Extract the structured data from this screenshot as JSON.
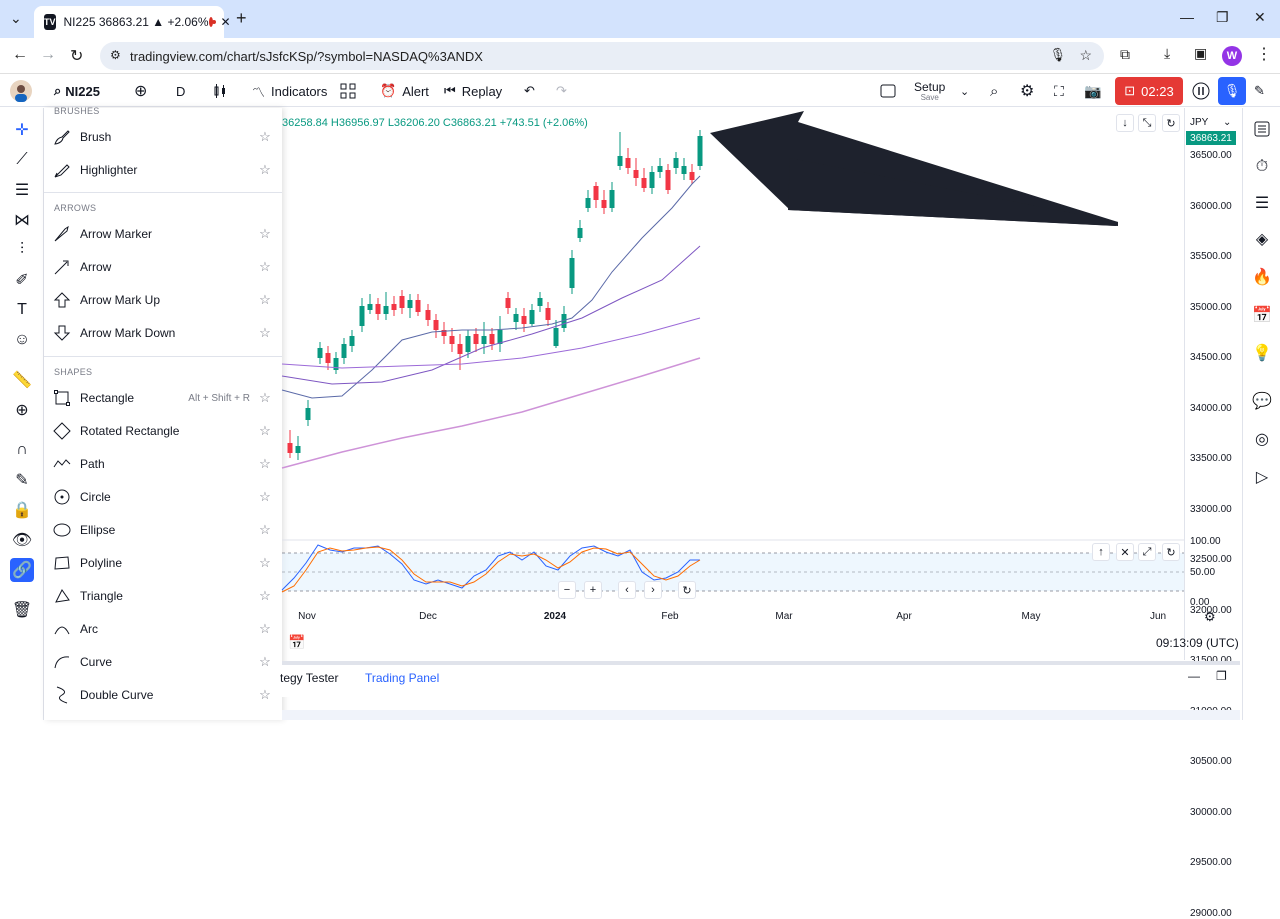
{
  "browser": {
    "tab_title": "NI225 36863.21 ▲ +2.06%",
    "tab_icon": "TV",
    "new_tab": "+",
    "url": "tradingview.com/chart/sJsfcKSp/?symbol=NASDAQ%3ANDX",
    "profile_initial": "W"
  },
  "toolbar": {
    "symbol": "NI225",
    "interval": "D",
    "indicators": "Indicators",
    "alert": "Alert",
    "replay": "Replay",
    "setup_title": "Setup",
    "setup_sub": "Save",
    "record_time": "02:23"
  },
  "drawing_menu": {
    "sections": [
      {
        "title": "BRUSHES",
        "items": [
          {
            "label": "Brush",
            "icon": "brush-icon"
          },
          {
            "label": "Highlighter",
            "icon": "highlighter-icon"
          }
        ]
      },
      {
        "title": "ARROWS",
        "items": [
          {
            "label": "Arrow Marker",
            "icon": "arrow-marker-icon"
          },
          {
            "label": "Arrow",
            "icon": "arrow-icon"
          },
          {
            "label": "Arrow Mark Up",
            "icon": "arrow-up-icon"
          },
          {
            "label": "Arrow Mark Down",
            "icon": "arrow-down-icon"
          }
        ]
      },
      {
        "title": "SHAPES",
        "items": [
          {
            "label": "Rectangle",
            "icon": "rectangle-icon",
            "shortcut": "Alt + Shift + R"
          },
          {
            "label": "Rotated Rectangle",
            "icon": "rotated-rectangle-icon"
          },
          {
            "label": "Path",
            "icon": "path-icon"
          },
          {
            "label": "Circle",
            "icon": "circle-icon"
          },
          {
            "label": "Ellipse",
            "icon": "ellipse-icon"
          },
          {
            "label": "Polyline",
            "icon": "polyline-icon"
          },
          {
            "label": "Triangle",
            "icon": "triangle-icon"
          },
          {
            "label": "Arc",
            "icon": "arc-icon"
          },
          {
            "label": "Curve",
            "icon": "curve-icon"
          },
          {
            "label": "Double Curve",
            "icon": "double-curve-icon"
          }
        ]
      }
    ]
  },
  "chart": {
    "ohlc": "36258.84 H36956.97 L36206.20 C36863.21 +743.51 (+2.06%)",
    "currency": "JPY",
    "last_price": "36863.21",
    "price_labels": [
      "36500.00",
      "36000.00",
      "35500.00",
      "35000.00",
      "34500.00",
      "34000.00",
      "33500.00",
      "33000.00",
      "32500.00",
      "32000.00",
      "31500.00",
      "31000.00",
      "30500.00",
      "30000.00",
      "29500.00",
      "29000.00"
    ],
    "osc_labels": [
      "100.00",
      "50.00",
      "0.00"
    ],
    "date_labels": [
      "Nov",
      "Dec",
      "2024",
      "Feb",
      "Mar",
      "Apr",
      "May",
      "Jun"
    ],
    "time": "09:13:09 (UTC)",
    "colors": {
      "up": "#089981",
      "down": "#f23645",
      "ma1": "#5b6aa8",
      "ma2": "#7e57c2",
      "ma3": "#9c6ad8",
      "ma4": "#ce93d8",
      "arrow": "#1e222d"
    }
  },
  "bottom_panel": {
    "tabs": [
      "tegy Tester",
      "Trading Panel"
    ]
  }
}
